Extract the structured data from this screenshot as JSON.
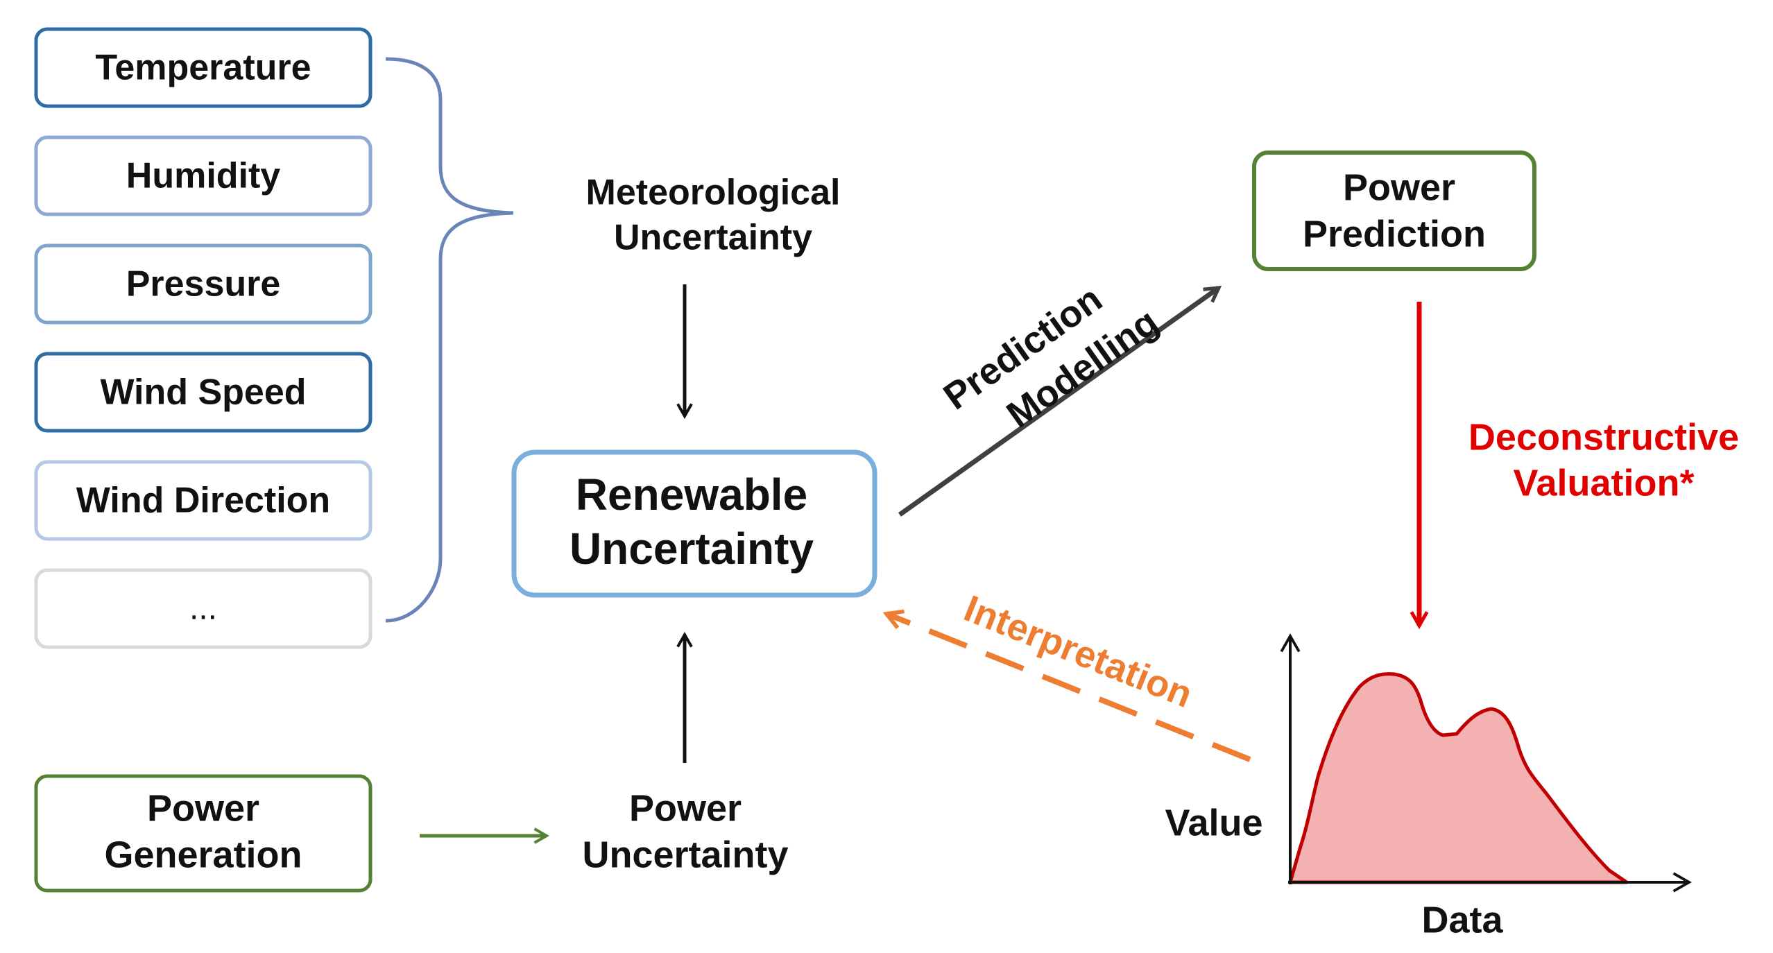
{
  "variables": [
    {
      "label": "Temperature",
      "color": "#2e6da4"
    },
    {
      "label": "Humidity",
      "color": "#8fa8d6"
    },
    {
      "label": "Pressure",
      "color": "#7fa5cf"
    },
    {
      "label": "Wind Speed",
      "color": "#2e6da4"
    },
    {
      "label": "Wind Direction",
      "color": "#b4c8e6"
    },
    {
      "label": "...",
      "color": "#d9d9d9"
    }
  ],
  "meteorological": {
    "line1": "Meteorological",
    "line2": "Uncertainty"
  },
  "renewable": {
    "line1": "Renewable",
    "line2": "Uncertainty"
  },
  "power_generation": {
    "line1": "Power",
    "line2": "Generation"
  },
  "power_uncertainty": {
    "line1": "Power",
    "line2": "Uncertainty"
  },
  "power_prediction": {
    "line1": "Power",
    "line2": "Prediction"
  },
  "modelling_arrow": {
    "line1": "Prediction",
    "line2": "Modelling"
  },
  "deconstructive": {
    "line1": "Deconstructive",
    "line2": "Valuation*"
  },
  "interpretation": {
    "label": "Interpretation"
  },
  "distribution_plot": {
    "ylabel": "Value",
    "xlabel": "Data"
  },
  "colors": {
    "blue_box": "#7aaedc",
    "green": "#548235",
    "red": "#e00000",
    "orange": "#ed7d31",
    "dark_arrow": "#404040",
    "brace": "#6b84b8",
    "curve_fill": "#f4b1b1",
    "curve_stroke": "#c00000"
  }
}
